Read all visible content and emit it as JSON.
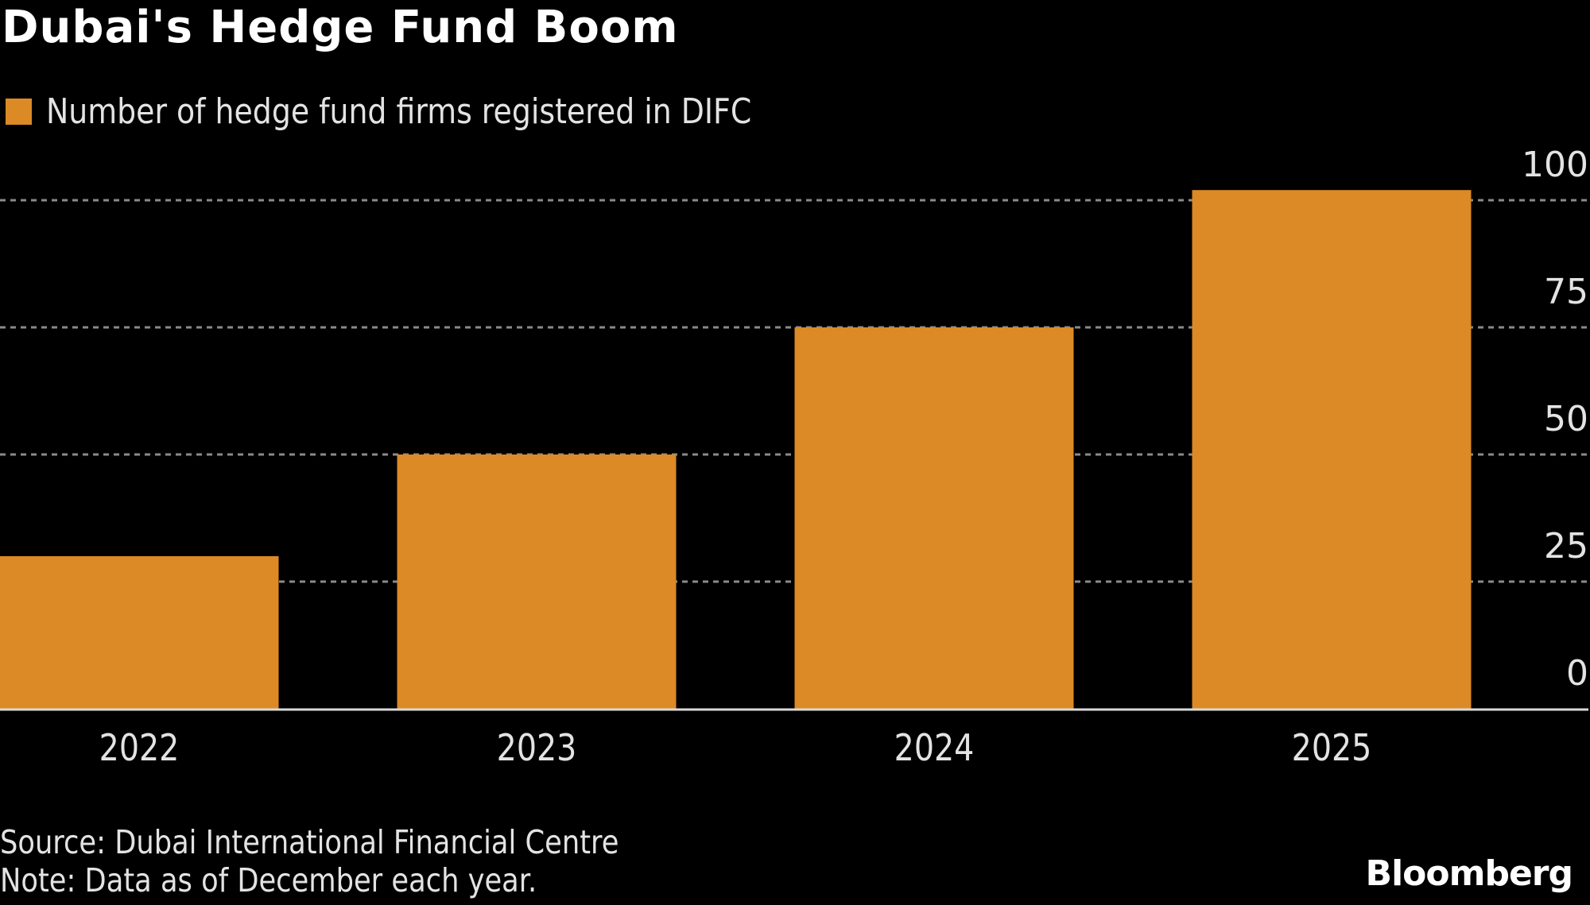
{
  "chart_data": {
    "type": "bar",
    "title": "Dubai's Hedge Fund Boom",
    "legend": [
      {
        "label": "Number of hedge fund firms registered in DIFC",
        "color": "#DB8A25"
      }
    ],
    "legend_position": "top-left",
    "categories": [
      "2022",
      "2023",
      "2024",
      "2025"
    ],
    "series": [
      {
        "name": "Number of hedge fund firms registered in DIFC",
        "values": [
          30,
          50,
          75,
          102
        ],
        "color": "#DB8A25"
      }
    ],
    "xlabel": "",
    "ylabel": "",
    "ylim": [
      0,
      100
    ],
    "yticks": [
      0,
      25,
      50,
      75,
      100
    ],
    "ytick_labels": [
      "0",
      "25",
      "50",
      "75",
      "100"
    ],
    "y_axis_side": "right",
    "grid": true
  },
  "footer": {
    "source": "Source: Dubai International Financial Centre",
    "note": "Note: Data as of December each year."
  },
  "branding": {
    "logo_text": "Bloomberg"
  },
  "colors": {
    "background": "#000000",
    "bar": "#DB8A25",
    "grid": "#8a8a8a",
    "axis": "#d9d9d9",
    "text": "#e3e3e3"
  }
}
